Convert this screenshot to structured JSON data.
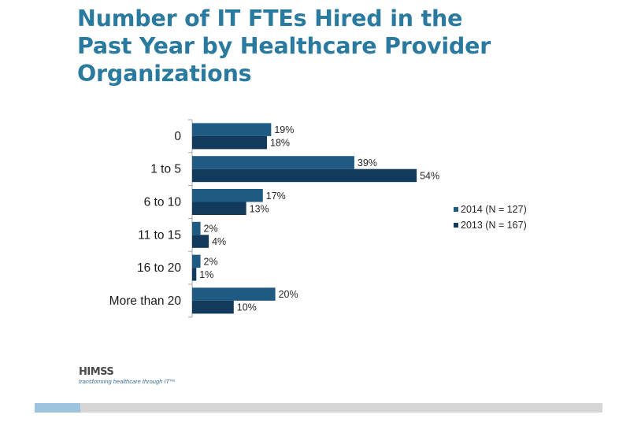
{
  "title_lines": [
    "Number of IT FTEs Hired in the",
    "Past Year by Healthcare Provider",
    "Organizations"
  ],
  "chart_data": {
    "type": "bar",
    "orientation": "horizontal",
    "title": "Number of IT FTEs Hired in the Past Year by Healthcare Provider Organizations",
    "xlabel": "",
    "ylabel": "",
    "categories": [
      "0",
      "1 to 5",
      "6 to 10",
      "11 to 15",
      "16 to 20",
      "More than 20"
    ],
    "series": [
      {
        "name": "2014 (N = 127)",
        "color": "#1f5a82",
        "values": [
          19,
          39,
          17,
          2,
          2,
          20
        ],
        "labels": [
          "19%",
          "39%",
          "17%",
          "2%",
          "2%",
          "20%"
        ]
      },
      {
        "name": "2013 (N = 167)",
        "color": "#123a5c",
        "values": [
          18,
          54,
          13,
          4,
          1,
          10
        ],
        "labels": [
          "18%",
          "54%",
          "13%",
          "4%",
          "1%",
          "10%"
        ]
      }
    ],
    "value_unit": "%",
    "xlim": [
      0,
      100
    ],
    "grid": false,
    "legend_position": "right"
  },
  "logo": {
    "name": "HIMSS",
    "tagline": "transforming healthcare through IT™"
  },
  "footer": {
    "accent_color": "#9cc4de",
    "bar_color": "#d6d6d6"
  }
}
